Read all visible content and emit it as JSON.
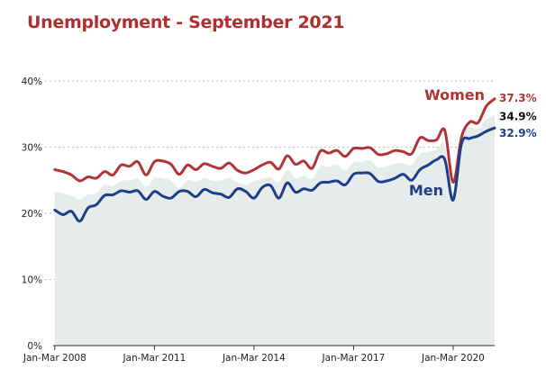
{
  "title": "Unemployment - September 2021",
  "colors": {
    "title": "#b03030",
    "women": "#b03434",
    "men": "#1d3f8a",
    "total_area": "#e6ebeb",
    "total_label": "#111111",
    "grid": "#bbbbbb"
  },
  "chart_data": {
    "type": "line",
    "title": "Unemployment - September 2021",
    "xlabel": "",
    "ylabel": "",
    "y_tick_labels": [
      "0%",
      "10%",
      "20%",
      "30%",
      "40%"
    ],
    "y_ticks": [
      0,
      10,
      20,
      30,
      40
    ],
    "ylim": [
      0,
      40
    ],
    "x_tick_labels": [
      "Jan-Mar 2008",
      "Jan-Mar 2011",
      "Jan-Mar 2014",
      "Jan-Mar 2017",
      "Jan-Mar 2020"
    ],
    "x_tick_years": [
      2008,
      2011,
      2014,
      2017,
      2020
    ],
    "xlim": [
      2007.95,
      2021.25
    ],
    "grid": "horizontal dotted",
    "x": [
      2008.0,
      2008.25,
      2008.5,
      2008.75,
      2009.0,
      2009.25,
      2009.5,
      2009.75,
      2010.0,
      2010.25,
      2010.5,
      2010.75,
      2011.0,
      2011.25,
      2011.5,
      2011.75,
      2012.0,
      2012.25,
      2012.5,
      2012.75,
      2013.0,
      2013.25,
      2013.5,
      2013.75,
      2014.0,
      2014.25,
      2014.5,
      2014.75,
      2015.0,
      2015.25,
      2015.5,
      2015.75,
      2016.0,
      2016.25,
      2016.5,
      2016.75,
      2017.0,
      2017.25,
      2017.5,
      2017.75,
      2018.0,
      2018.25,
      2018.5,
      2018.75,
      2019.0,
      2019.25,
      2019.5,
      2019.75,
      2020.0,
      2020.25,
      2020.5,
      2020.75,
      2021.0,
      2021.25
    ],
    "series": [
      {
        "name": "Women",
        "end_label": "37.3%",
        "values": [
          26.6,
          26.3,
          25.8,
          24.9,
          25.5,
          25.3,
          26.3,
          25.8,
          27.3,
          27.1,
          27.8,
          25.8,
          27.8,
          27.9,
          27.4,
          25.9,
          27.3,
          26.6,
          27.5,
          27.1,
          26.8,
          27.6,
          26.5,
          26.1,
          26.6,
          27.3,
          27.7,
          26.7,
          28.7,
          27.4,
          27.9,
          26.8,
          29.4,
          29.1,
          29.5,
          28.6,
          29.8,
          29.8,
          29.9,
          28.9,
          29.0,
          29.5,
          29.3,
          29.0,
          31.4,
          31.0,
          31.1,
          32.5,
          24.7,
          31.5,
          33.8,
          33.7,
          36.2,
          37.3
        ]
      },
      {
        "name": "",
        "end_label": "34.9%",
        "values": [
          23.3,
          23.0,
          22.7,
          22.1,
          22.8,
          23.1,
          24.3,
          24.1,
          24.9,
          25.0,
          25.3,
          24.0,
          25.3,
          25.3,
          24.9,
          23.8,
          25.0,
          24.8,
          25.3,
          24.9,
          25.0,
          25.3,
          24.7,
          24.3,
          24.9,
          25.2,
          25.4,
          24.7,
          26.6,
          25.3,
          25.7,
          25.2,
          27.1,
          27.0,
          27.3,
          26.5,
          27.7,
          27.8,
          28.0,
          26.9,
          27.1,
          27.5,
          27.6,
          27.3,
          29.0,
          29.3,
          29.6,
          30.3,
          23.1,
          32.0,
          33.0,
          32.8,
          34.2,
          34.9
        ]
      },
      {
        "name": "Men",
        "end_label": "32.9%",
        "values": [
          20.5,
          19.8,
          20.3,
          18.8,
          20.8,
          21.3,
          22.7,
          22.8,
          23.4,
          23.2,
          23.4,
          22.1,
          23.3,
          22.6,
          22.3,
          23.3,
          23.3,
          22.5,
          23.6,
          23.1,
          22.9,
          22.4,
          23.7,
          23.3,
          22.3,
          23.9,
          24.2,
          22.3,
          24.6,
          23.2,
          23.7,
          23.5,
          24.6,
          24.7,
          24.9,
          24.3,
          25.9,
          26.1,
          26.0,
          24.8,
          24.9,
          25.3,
          25.9,
          25.0,
          26.6,
          27.3,
          28.1,
          28.1,
          22.0,
          30.5,
          31.3,
          31.7,
          32.4,
          32.9
        ]
      }
    ]
  }
}
